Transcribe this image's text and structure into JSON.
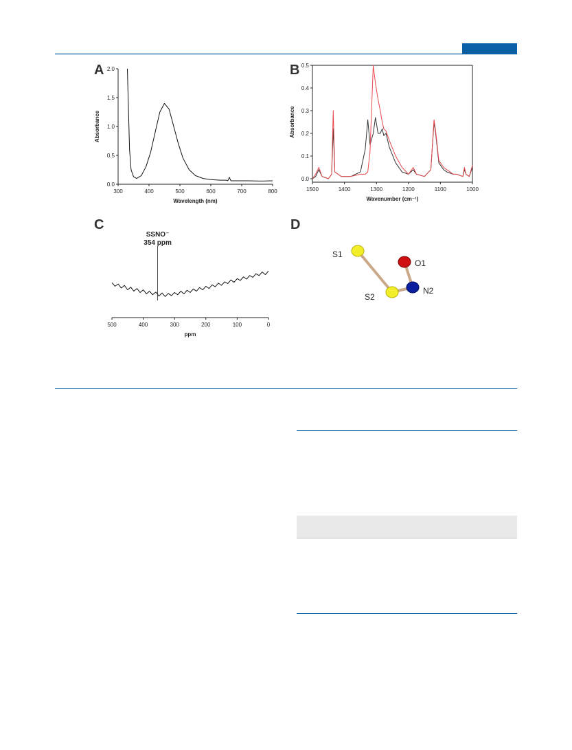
{
  "chart_data": [
    {
      "type": "line",
      "panel_label": "A",
      "x_label": "Wavelength (nm)",
      "y_label": "Absorbance",
      "x": [
        330,
        333,
        337,
        342,
        350,
        360,
        375,
        390,
        405,
        420,
        435,
        450,
        465,
        480,
        495,
        510,
        530,
        550,
        575,
        600,
        630,
        650,
        655,
        660,
        665,
        680,
        720,
        760,
        800
      ],
      "series": [
        {
          "color": "#111111",
          "values": [
            2.0,
            1.4,
            0.6,
            0.25,
            0.13,
            0.1,
            0.15,
            0.3,
            0.55,
            0.9,
            1.25,
            1.4,
            1.3,
            1.0,
            0.7,
            0.45,
            0.25,
            0.15,
            0.1,
            0.08,
            0.07,
            0.07,
            0.06,
            0.12,
            0.06,
            0.06,
            0.06,
            0.055,
            0.06
          ]
        }
      ],
      "xlim": [
        300,
        800
      ],
      "xticks": [
        300,
        400,
        500,
        600,
        700,
        800
      ],
      "ylim": [
        0,
        2
      ],
      "yticks": [
        {
          "value": 0,
          "label": "0.0"
        },
        0.5,
        {
          "value": 1,
          "label": "1.0"
        },
        1.5,
        {
          "value": 2,
          "label": "2.0"
        }
      ]
    },
    {
      "type": "line",
      "panel_label": "B",
      "x_label": "Wavenumber (cm⁻¹)",
      "y_label": "Absorbance",
      "x": [
        1500,
        1490,
        1480,
        1470,
        1450,
        1440,
        1435,
        1430,
        1410,
        1380,
        1350,
        1335,
        1327,
        1320,
        1310,
        1303,
        1295,
        1288,
        1282,
        1277,
        1270,
        1260,
        1240,
        1220,
        1200,
        1185,
        1175,
        1150,
        1130,
        1120,
        1115,
        1105,
        1090,
        1080,
        1060,
        1050,
        1030,
        1025,
        1020,
        1010,
        1000
      ],
      "series": [
        {
          "color": "#333333",
          "values": [
            0.0,
            0.01,
            0.04,
            0.01,
            0.0,
            0.02,
            0.22,
            0.03,
            0.01,
            0.01,
            0.03,
            0.13,
            0.26,
            0.15,
            0.2,
            0.27,
            0.2,
            0.2,
            0.22,
            0.19,
            0.2,
            0.14,
            0.07,
            0.03,
            0.02,
            0.04,
            0.02,
            0.01,
            0.04,
            0.25,
            0.2,
            0.07,
            0.04,
            0.03,
            0.02,
            0.02,
            0.01,
            0.04,
            0.02,
            0.01,
            0.05
          ]
        },
        {
          "color": "#e8474a",
          "values": [
            0.0,
            0.02,
            0.05,
            0.01,
            0.0,
            0.02,
            0.3,
            0.03,
            0.01,
            0.01,
            0.02,
            0.02,
            0.03,
            0.12,
            0.5,
            0.42,
            0.35,
            0.3,
            0.25,
            0.22,
            0.21,
            0.17,
            0.1,
            0.05,
            0.02,
            0.05,
            0.02,
            0.01,
            0.04,
            0.26,
            0.21,
            0.08,
            0.05,
            0.04,
            0.02,
            0.02,
            0.01,
            0.05,
            0.02,
            0.01,
            0.06
          ]
        }
      ],
      "xlim": [
        1500,
        1000
      ],
      "xticks": [
        1500,
        1400,
        1300,
        1200,
        1100,
        1000
      ],
      "ylim": [
        0,
        0.5
      ],
      "yticks": [
        {
          "value": 0,
          "label": "0.0"
        },
        0.1,
        0.2,
        0.3,
        0.4,
        0.5
      ]
    },
    {
      "type": "line",
      "panel_label": "C",
      "x_label": "ppm",
      "x": [
        500,
        490,
        480,
        470,
        460,
        450,
        440,
        430,
        420,
        410,
        400,
        390,
        380,
        370,
        360,
        350,
        340,
        330,
        320,
        310,
        300,
        290,
        280,
        270,
        260,
        250,
        240,
        230,
        220,
        210,
        200,
        190,
        180,
        170,
        160,
        150,
        140,
        130,
        120,
        110,
        100,
        90,
        80,
        70,
        60,
        50,
        40,
        30,
        20,
        10,
        0
      ],
      "series": [
        {
          "color": "#111111",
          "values": [
            5.2,
            4.4,
            4.9,
            4.0,
            4.6,
            3.6,
            4.2,
            3.3,
            3.9,
            3.0,
            3.6,
            2.7,
            3.3,
            2.5,
            3.1,
            2.2,
            2.9,
            2.1,
            2.8,
            2.3,
            3.0,
            2.5,
            3.3,
            2.7,
            3.5,
            3.0,
            3.8,
            3.3,
            4.1,
            3.6,
            4.4,
            3.9,
            4.7,
            4.3,
            5.1,
            4.6,
            5.4,
            5.0,
            5.8,
            5.3,
            6.1,
            5.7,
            6.5,
            6.0,
            6.8,
            6.4,
            7.2,
            6.8,
            7.6,
            7.0,
            7.8
          ]
        }
      ],
      "xlim": [
        500,
        0
      ],
      "xticks": [
        500,
        400,
        300,
        200,
        100,
        0
      ],
      "ylim": [
        0,
        10
      ],
      "annotation": {
        "text": "SSNO⁻",
        "label": "354 ppm",
        "x": 354
      }
    }
  ],
  "diagram": {
    "panel_label": "D",
    "atoms": [
      {
        "label": "S1"
      },
      {
        "label": "O1"
      },
      {
        "label": "N2"
      },
      {
        "label": "S2"
      }
    ]
  }
}
